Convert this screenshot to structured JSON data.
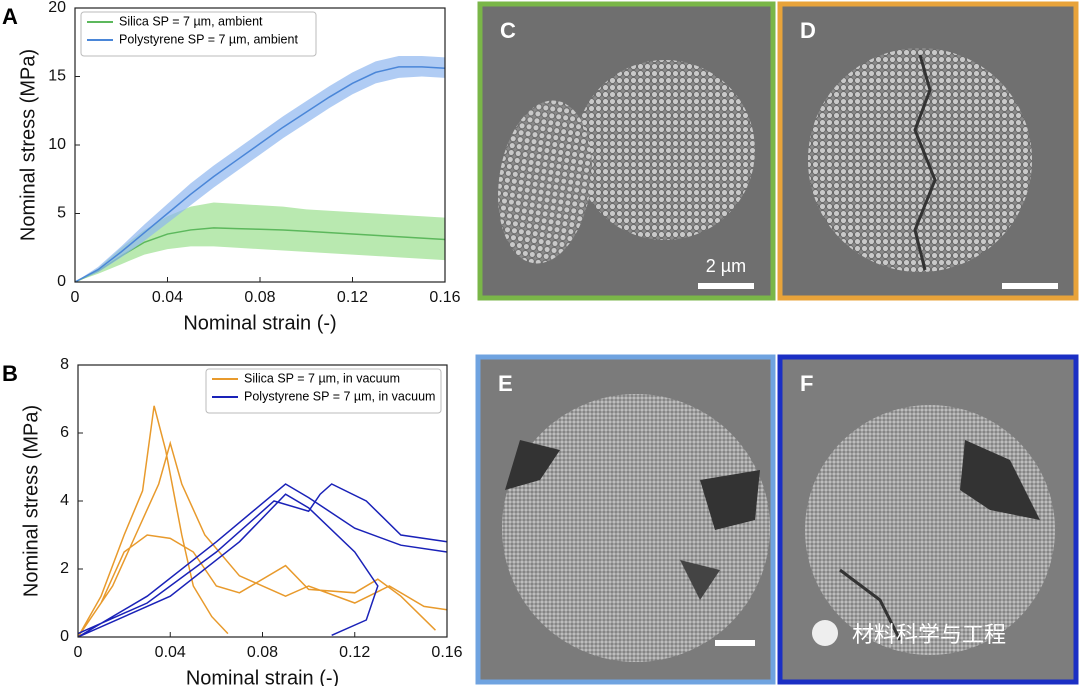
{
  "chart_data": [
    {
      "type": "line",
      "panel_label": "A",
      "xlabel": "Nominal strain (-)",
      "ylabel": "Nominal stress (MPa)",
      "xlim": [
        0,
        0.16
      ],
      "xticks": [
        0,
        0.04,
        0.08,
        0.12,
        0.16
      ],
      "ylim": [
        0,
        20
      ],
      "yticks": [
        0,
        5,
        10,
        15,
        20
      ],
      "legend": "upper left",
      "series": [
        {
          "name": "Silica SP = 7 µm, ambient",
          "color": "#5cb85c",
          "band_color": "#9be08e",
          "x": [
            0,
            0.01,
            0.02,
            0.03,
            0.04,
            0.05,
            0.06,
            0.07,
            0.08,
            0.09,
            0.1,
            0.11,
            0.12,
            0.13,
            0.14,
            0.15,
            0.16
          ],
          "values": [
            0,
            0.8,
            1.9,
            2.9,
            3.5,
            3.8,
            3.95,
            3.9,
            3.85,
            3.8,
            3.7,
            3.6,
            3.5,
            3.4,
            3.3,
            3.2,
            3.1
          ],
          "lower": [
            0,
            0.6,
            1.3,
            2.0,
            2.4,
            2.6,
            2.6,
            2.5,
            2.4,
            2.3,
            2.2,
            2.1,
            2.0,
            1.9,
            1.8,
            1.7,
            1.6
          ],
          "upper": [
            0,
            1.0,
            2.5,
            3.8,
            4.8,
            5.5,
            5.8,
            5.7,
            5.6,
            5.5,
            5.3,
            5.2,
            5.1,
            5.0,
            4.9,
            4.8,
            4.7
          ]
        },
        {
          "name": "Polystyrene SP = 7 µm, ambient",
          "color": "#4a86d8",
          "band_color": "#8fb6f0",
          "x": [
            0,
            0.01,
            0.02,
            0.03,
            0.04,
            0.05,
            0.06,
            0.07,
            0.08,
            0.09,
            0.1,
            0.11,
            0.12,
            0.13,
            0.14,
            0.15,
            0.16
          ],
          "values": [
            0,
            0.9,
            2.2,
            3.6,
            5.0,
            6.4,
            7.7,
            8.9,
            10.1,
            11.3,
            12.4,
            13.5,
            14.5,
            15.3,
            15.7,
            15.7,
            15.6
          ],
          "lower": [
            0,
            0.7,
            1.8,
            3.0,
            4.3,
            5.6,
            6.9,
            8.1,
            9.3,
            10.5,
            11.6,
            12.7,
            13.7,
            14.5,
            14.9,
            15.0,
            14.9
          ],
          "upper": [
            0,
            1.1,
            2.6,
            4.2,
            5.7,
            7.2,
            8.5,
            9.7,
            10.9,
            12.1,
            13.2,
            14.3,
            15.3,
            16.1,
            16.5,
            16.5,
            16.4
          ]
        }
      ]
    },
    {
      "type": "line",
      "panel_label": "B",
      "xlabel": "Nominal strain (-)",
      "ylabel": "Nominal stress (MPa)",
      "xlim": [
        0,
        0.16
      ],
      "xticks": [
        0,
        0.04,
        0.08,
        0.12,
        0.16
      ],
      "ylim": [
        0,
        8
      ],
      "yticks": [
        0,
        2,
        4,
        6,
        8
      ],
      "legend": "upper right",
      "series": [
        {
          "name": "Silica SP = 7 µm, in vacuum",
          "color": "#e89a2c",
          "x": [
            0,
            0.01,
            0.02,
            0.028,
            0.033,
            0.038,
            0.045,
            0.05,
            0.058,
            0.065,
            null,
            0,
            0.015,
            0.025,
            0.035,
            0.04,
            0.045,
            0.055,
            0.07,
            0.09,
            0.1,
            0.12,
            0.135,
            0.15,
            0.16,
            null,
            0,
            0.01,
            0.02,
            0.03,
            0.04,
            0.05,
            0.06,
            0.07,
            0.09,
            0.1,
            0.12,
            0.13,
            0.14,
            0.155
          ],
          "values": [
            0,
            1.2,
            3,
            4.3,
            6.8,
            5.5,
            3,
            1.5,
            0.6,
            0.1,
            null,
            0,
            1.5,
            3,
            4.5,
            5.7,
            4.5,
            3,
            1.8,
            1.2,
            1.5,
            1.0,
            1.5,
            0.9,
            0.8,
            null,
            0,
            1,
            2.5,
            3,
            2.9,
            2.5,
            1.5,
            1.3,
            2.1,
            1.4,
            1.3,
            1.7,
            1.2,
            0.2
          ]
        },
        {
          "name": "Polystyrene SP = 7 µm, in vacuum",
          "color": "#1a22b8",
          "x": [
            0,
            0.03,
            0.06,
            0.09,
            0.1,
            0.12,
            0.14,
            0.16,
            null,
            0,
            0.03,
            0.06,
            0.085,
            0.1,
            0.105,
            0.11,
            0.125,
            0.14,
            0.16,
            null,
            0,
            0.04,
            0.07,
            0.09,
            0.1,
            0.12,
            0.13,
            0.125,
            0.11
          ],
          "values": [
            0,
            1.2,
            2.8,
            4.5,
            4.1,
            3.2,
            2.7,
            2.5,
            null,
            0.1,
            1,
            2.5,
            4.0,
            3.7,
            4.2,
            4.5,
            4,
            3,
            2.8,
            null,
            0,
            1.2,
            2.8,
            4.2,
            3.8,
            2.5,
            1.5,
            0.5,
            0.05
          ]
        }
      ]
    }
  ],
  "panels": [
    {
      "label": "C"
    },
    {
      "label": "D"
    },
    {
      "label": "E"
    },
    {
      "label": "F"
    }
  ],
  "scale_bar": "2 µm",
  "watermark": "材料科学与工程"
}
